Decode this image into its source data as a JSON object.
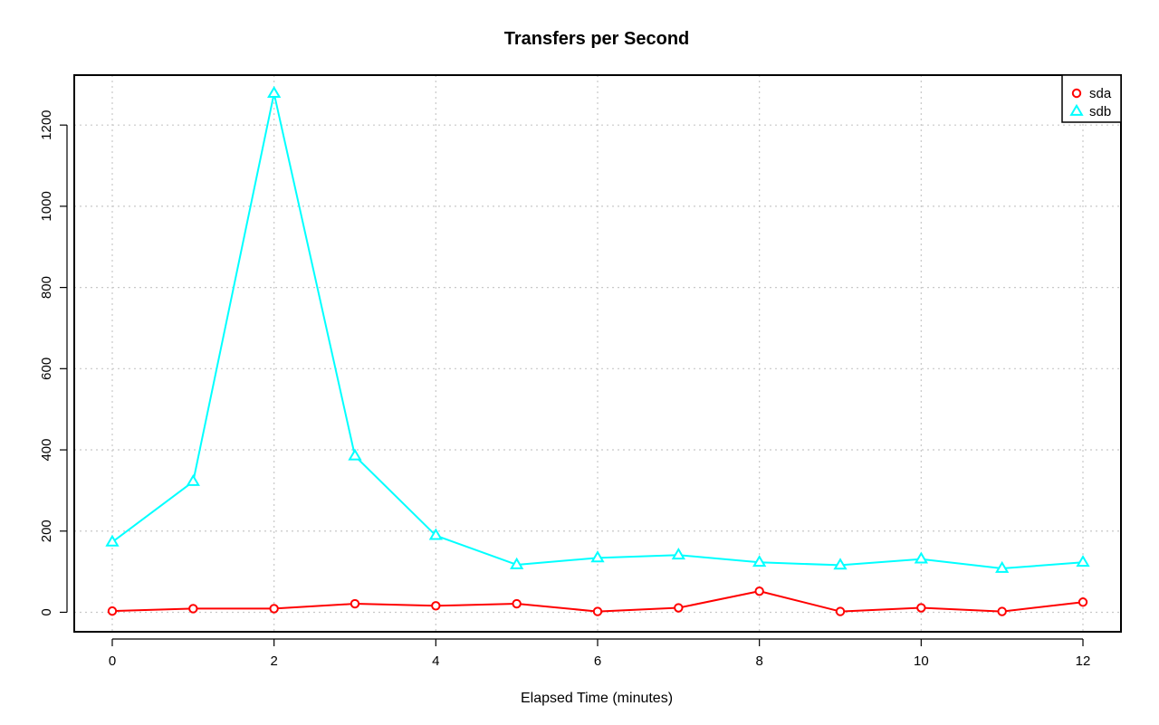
{
  "chart_data": {
    "type": "line",
    "title": "Transfers per Second",
    "xlabel": "Elapsed Time (minutes)",
    "ylabel": "",
    "x": [
      0,
      1,
      2,
      3,
      4,
      5,
      6,
      7,
      8,
      9,
      10,
      11,
      12
    ],
    "xlim": [
      -0.47,
      12.47
    ],
    "ylim": [
      -48,
      1323
    ],
    "xticks": [
      0,
      2,
      4,
      6,
      8,
      10,
      12
    ],
    "yticks": [
      0,
      200,
      400,
      600,
      800,
      1000,
      1200
    ],
    "grid": true,
    "legend_position": "top-right",
    "series": [
      {
        "name": "sda",
        "color": "#ff0000",
        "marker": "circle",
        "values": [
          3,
          9,
          9,
          21,
          16,
          21,
          2,
          11,
          52,
          2,
          11,
          2,
          25
        ]
      },
      {
        "name": "sdb",
        "color": "#00ffff",
        "marker": "triangle",
        "values": [
          173,
          322,
          1278,
          385,
          189,
          117,
          134,
          141,
          123,
          116,
          131,
          108,
          123
        ]
      }
    ]
  }
}
